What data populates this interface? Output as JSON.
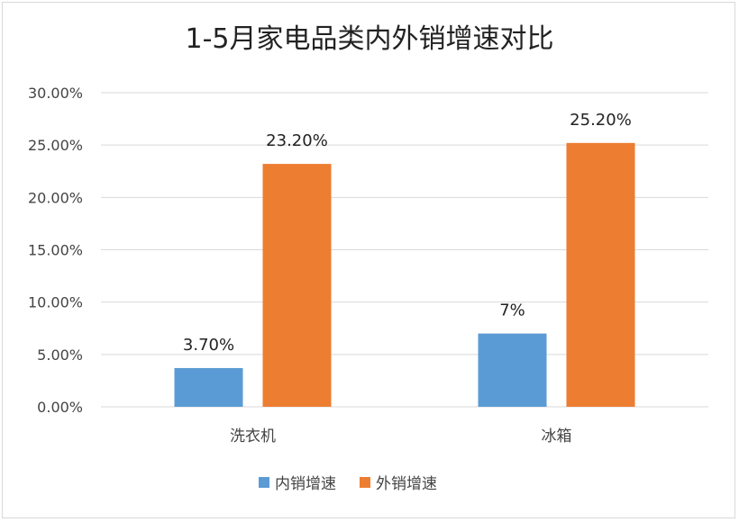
{
  "chart_data": {
    "type": "bar",
    "title": "1-5月家电品类内外销增速对比",
    "xlabel": "",
    "ylabel": "",
    "categories": [
      "洗衣机",
      "冰箱"
    ],
    "series": [
      {
        "name": "内销增速",
        "values": [
          3.7,
          7
        ],
        "labels": [
          "3.70%",
          "7%"
        ],
        "color": "#5b9bd5"
      },
      {
        "name": "外销增速",
        "values": [
          23.2,
          25.2
        ],
        "labels": [
          "23.20%",
          "25.20%"
        ],
        "color": "#ed7d31"
      }
    ],
    "ylim": [
      0,
      30
    ],
    "yticks": [
      0,
      5,
      10,
      15,
      20,
      25,
      30
    ],
    "ytick_labels": [
      "0.00%",
      "5.00%",
      "10.00%",
      "15.00%",
      "20.00%",
      "25.00%",
      "30.00%"
    ],
    "grid": true,
    "legend": "bottom"
  }
}
